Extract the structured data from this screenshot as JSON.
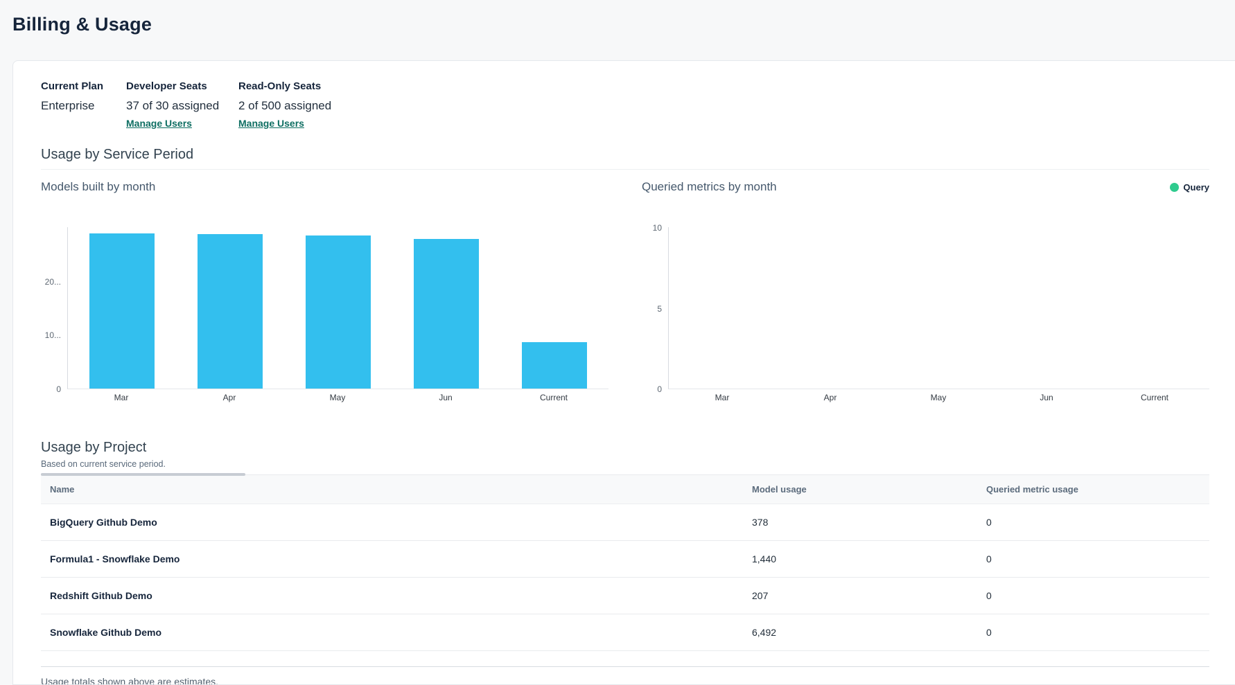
{
  "page": {
    "title": "Billing & Usage"
  },
  "plan": {
    "current_plan_label": "Current Plan",
    "current_plan_value": "Enterprise",
    "developer_seats_label": "Developer Seats",
    "developer_seats_value": "37 of 30 assigned",
    "developer_manage_link": "Manage Users",
    "readonly_seats_label": "Read-Only Seats",
    "readonly_seats_value": "2 of 500 assigned",
    "readonly_manage_link": "Manage Users"
  },
  "usage_section": {
    "title": "Usage by Service Period"
  },
  "chart_data": [
    {
      "type": "bar",
      "title": "Models built by month",
      "categories": [
        "Mar",
        "Apr",
        "May",
        "Jun",
        "Current"
      ],
      "values": [
        28800,
        28700,
        28500,
        27800,
        8600
      ],
      "xlabel": "",
      "ylabel": "",
      "ylim": [
        0,
        30000
      ],
      "yticks": [
        {
          "value": 0,
          "label": "0"
        },
        {
          "value": 10000,
          "label": "10..."
        },
        {
          "value": 20000,
          "label": "20..."
        }
      ],
      "bar_color": "#33bfee",
      "grid": false,
      "legend": null
    },
    {
      "type": "bar",
      "title": "Queried metrics by month",
      "categories": [
        "Mar",
        "Apr",
        "May",
        "Jun",
        "Current"
      ],
      "values": [
        0,
        0,
        0,
        0,
        0
      ],
      "xlabel": "",
      "ylabel": "",
      "ylim": [
        0,
        10
      ],
      "yticks": [
        {
          "value": 0,
          "label": "0"
        },
        {
          "value": 5,
          "label": "5"
        },
        {
          "value": 10,
          "label": "10"
        }
      ],
      "bar_color": "#2fcb8e",
      "grid": false,
      "legend": {
        "label": "Query",
        "color": "#2fcb8e",
        "position": "top-right"
      }
    }
  ],
  "project_section": {
    "title": "Usage by Project",
    "subtitle": "Based on current service period.",
    "table": {
      "columns": [
        "Name",
        "Model usage",
        "Queried metric usage"
      ],
      "rows": [
        {
          "name": "BigQuery Github Demo",
          "model_usage": "378",
          "queried_metric_usage": "0"
        },
        {
          "name": "Formula1 - Snowflake Demo",
          "model_usage": "1,440",
          "queried_metric_usage": "0"
        },
        {
          "name": "Redshift Github Demo",
          "model_usage": "207",
          "queried_metric_usage": "0"
        },
        {
          "name": "Snowflake Github Demo",
          "model_usage": "6,492",
          "queried_metric_usage": "0"
        }
      ]
    },
    "footnote": "Usage totals shown above are estimates."
  },
  "colors": {
    "bar_blue": "#33bfee",
    "legend_green": "#2fcb8e",
    "link_teal": "#0e6e62",
    "page_background": "#f7f8f9"
  }
}
